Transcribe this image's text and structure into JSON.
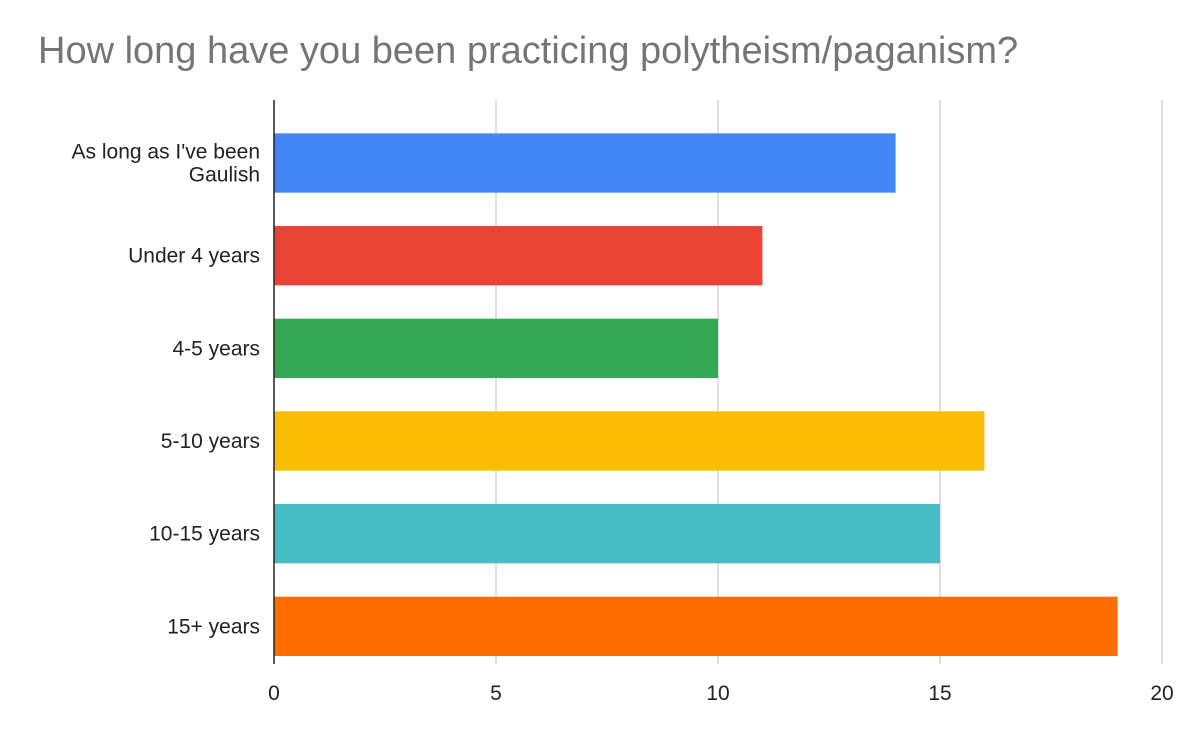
{
  "chart_data": {
    "type": "bar",
    "orientation": "horizontal",
    "title": "How long have you been practicing polytheism/paganism?",
    "xlabel": "",
    "ylabel": "",
    "categories": [
      [
        "As long as I've been",
        "Gaulish"
      ],
      [
        "Under 4 years"
      ],
      [
        "4-5 years"
      ],
      [
        "5-10 years"
      ],
      [
        "10-15 years"
      ],
      [
        "15+ years"
      ]
    ],
    "values": [
      14,
      11,
      10,
      16,
      15,
      19
    ],
    "colors": [
      "#4285f4",
      "#ea4335",
      "#34a853",
      "#fbbc04",
      "#46bdc6",
      "#ff6d01"
    ],
    "xlim": [
      0,
      20
    ],
    "xticks": [
      0,
      5,
      10,
      15,
      20
    ],
    "grid": true,
    "legend": "none"
  }
}
